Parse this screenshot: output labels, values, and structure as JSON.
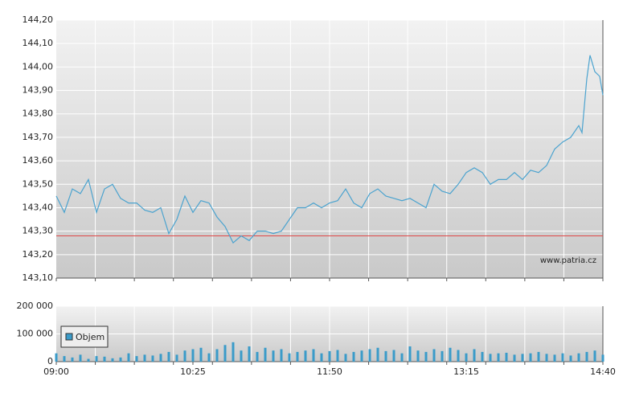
{
  "chart_data": [
    {
      "type": "line",
      "x": [
        "09:00",
        "09:05",
        "09:10",
        "09:15",
        "09:20",
        "09:25",
        "09:30",
        "09:35",
        "09:40",
        "09:45",
        "09:50",
        "09:55",
        "10:00",
        "10:05",
        "10:10",
        "10:15",
        "10:20",
        "10:25",
        "10:30",
        "10:35",
        "10:40",
        "10:45",
        "10:50",
        "10:55",
        "11:00",
        "11:05",
        "11:10",
        "11:15",
        "11:20",
        "11:25",
        "11:30",
        "11:35",
        "11:40",
        "11:45",
        "11:50",
        "11:55",
        "12:00",
        "12:05",
        "12:10",
        "12:15",
        "12:20",
        "12:25",
        "12:30",
        "12:35",
        "12:40",
        "12:45",
        "12:50",
        "12:55",
        "13:00",
        "13:05",
        "13:10",
        "13:15",
        "13:20",
        "13:25",
        "13:30",
        "13:35",
        "13:40",
        "13:45",
        "13:50",
        "13:55",
        "14:00",
        "14:05",
        "14:10",
        "14:15",
        "14:20",
        "14:25",
        "14:27",
        "14:30",
        "14:32",
        "14:35",
        "14:38",
        "14:40"
      ],
      "series": [
        {
          "color": "#4ba3cf",
          "values": [
            143.45,
            143.38,
            143.48,
            143.46,
            143.52,
            143.38,
            143.48,
            143.5,
            143.44,
            143.42,
            143.42,
            143.39,
            143.38,
            143.4,
            143.29,
            143.35,
            143.45,
            143.38,
            143.43,
            143.42,
            143.36,
            143.32,
            143.25,
            143.28,
            143.26,
            143.3,
            143.3,
            143.29,
            143.3,
            143.35,
            143.4,
            143.4,
            143.42,
            143.4,
            143.42,
            143.43,
            143.48,
            143.42,
            143.4,
            143.46,
            143.48,
            143.45,
            143.44,
            143.43,
            143.44,
            143.42,
            143.4,
            143.5,
            143.47,
            143.46,
            143.5,
            143.55,
            143.57,
            143.55,
            143.5,
            143.52,
            143.52,
            143.55,
            143.52,
            143.56,
            143.55,
            143.58,
            143.65,
            143.68,
            143.7,
            143.75,
            143.72,
            143.95,
            144.05,
            143.98,
            143.96,
            143.88
          ]
        }
      ],
      "reference_line": {
        "value": 143.28,
        "color": "#e04848"
      },
      "xlim": [
        "09:00",
        "14:40"
      ],
      "ylim": [
        143.1,
        144.2
      ],
      "yticks": [
        {
          "value": 143.1,
          "label": "143,10"
        },
        {
          "value": 143.2,
          "label": "143,20"
        },
        {
          "value": 143.3,
          "label": "143,30"
        },
        {
          "value": 143.4,
          "label": "143,40"
        },
        {
          "value": 143.5,
          "label": "143,50"
        },
        {
          "value": 143.6,
          "label": "143,60"
        },
        {
          "value": 143.7,
          "label": "143,70"
        },
        {
          "value": 143.8,
          "label": "143,80"
        },
        {
          "value": 143.9,
          "label": "143,90"
        },
        {
          "value": 144.0,
          "label": "144,00"
        },
        {
          "value": 144.1,
          "label": "144,10"
        },
        {
          "value": 144.2,
          "label": "144,20"
        }
      ],
      "grid": true,
      "watermark": "www.patria.cz"
    },
    {
      "type": "bar",
      "x": [
        "09:00",
        "09:05",
        "09:10",
        "09:15",
        "09:20",
        "09:25",
        "09:30",
        "09:35",
        "09:40",
        "09:45",
        "09:50",
        "09:55",
        "10:00",
        "10:05",
        "10:10",
        "10:15",
        "10:20",
        "10:25",
        "10:30",
        "10:35",
        "10:40",
        "10:45",
        "10:50",
        "10:55",
        "11:00",
        "11:05",
        "11:10",
        "11:15",
        "11:20",
        "11:25",
        "11:30",
        "11:35",
        "11:40",
        "11:45",
        "11:50",
        "11:55",
        "12:00",
        "12:05",
        "12:10",
        "12:15",
        "12:20",
        "12:25",
        "12:30",
        "12:35",
        "12:40",
        "12:45",
        "12:50",
        "12:55",
        "13:00",
        "13:05",
        "13:10",
        "13:15",
        "13:20",
        "13:25",
        "13:30",
        "13:35",
        "13:40",
        "13:45",
        "13:50",
        "13:55",
        "14:00",
        "14:05",
        "14:10",
        "14:15",
        "14:20",
        "14:25",
        "14:30",
        "14:35",
        "14:40"
      ],
      "series": [
        {
          "name": "Objem",
          "color": "#3a9bc9",
          "values": [
            30000,
            20000,
            15000,
            25000,
            10000,
            20000,
            18000,
            12000,
            15000,
            30000,
            20000,
            25000,
            22000,
            28000,
            35000,
            25000,
            40000,
            45000,
            50000,
            30000,
            45000,
            60000,
            70000,
            40000,
            55000,
            35000,
            50000,
            40000,
            45000,
            30000,
            35000,
            40000,
            45000,
            30000,
            38000,
            42000,
            28000,
            35000,
            40000,
            45000,
            50000,
            38000,
            42000,
            30000,
            55000,
            40000,
            35000,
            45000,
            38000,
            50000,
            42000,
            30000,
            45000,
            35000,
            28000,
            30000,
            32000,
            25000,
            28000,
            30000,
            35000,
            28000,
            25000,
            30000,
            22000,
            30000,
            35000,
            40000,
            25000
          ]
        }
      ],
      "xlim": [
        "09:00",
        "14:40"
      ],
      "xticks": [
        "09:00",
        "10:25",
        "11:50",
        "13:15",
        "14:40"
      ],
      "ylim": [
        0,
        200000
      ],
      "yticks": [
        0,
        {
          "value": 100000,
          "label": "100 000"
        },
        {
          "value": 200000,
          "label": "200 000"
        }
      ],
      "grid": true,
      "legend": "upper-left"
    }
  ]
}
